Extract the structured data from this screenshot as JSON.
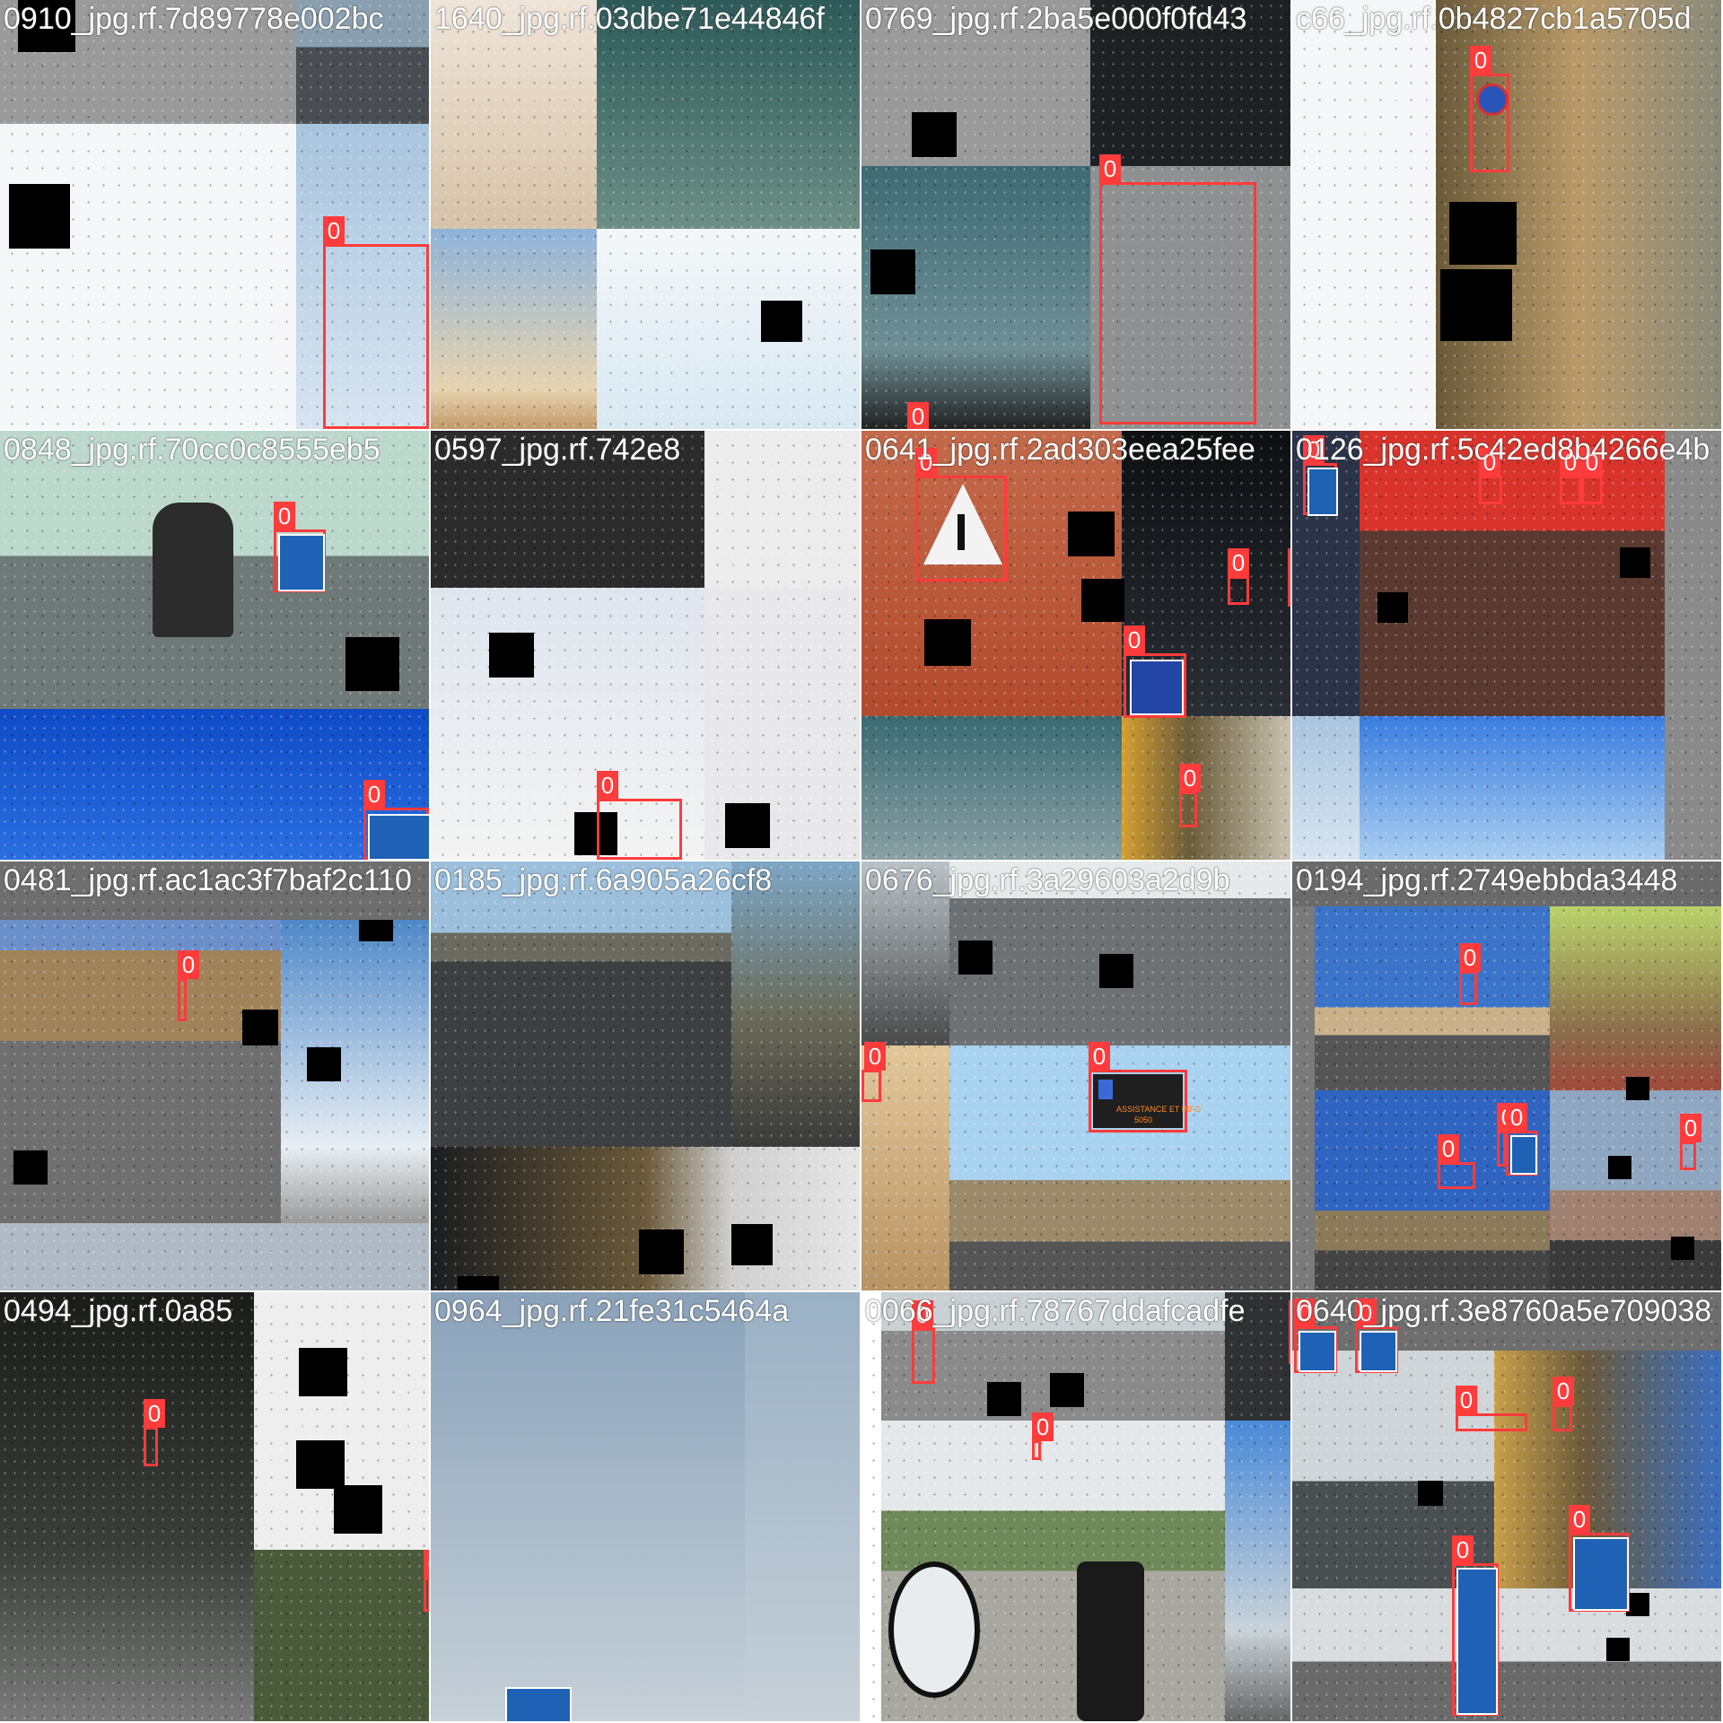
{
  "title_strip_color": "#ff3b3b",
  "tiles": [
    {
      "id": "t1",
      "title": "0910_jpg.rf.7d89778e002bc",
      "boxes": [
        {
          "label": "0"
        }
      ]
    },
    {
      "id": "t2",
      "title": "1640_jpg.rf.03dbe71e44846f",
      "boxes": []
    },
    {
      "id": "t3",
      "title": "0769_jpg.rf.2ba5e000f0fd43",
      "boxes": [
        {
          "label": "0"
        },
        {
          "label": "0"
        }
      ]
    },
    {
      "id": "t4",
      "title": "c66_jpg.rf.0b4827cb1a5705d",
      "boxes": [
        {
          "label": "0"
        }
      ]
    },
    {
      "id": "t5",
      "title": "0848_jpg.rf.70cc0c8555eb5",
      "boxes": [
        {
          "label": "0"
        },
        {
          "label": "0"
        }
      ]
    },
    {
      "id": "t6",
      "title": "0597_jpg.rf.742e8",
      "boxes": [
        {
          "label": "0"
        }
      ]
    },
    {
      "id": "t7",
      "title": "0641_jpg.rf.2ad303eea25fee",
      "boxes": [
        {
          "label": "0"
        },
        {
          "label": "0"
        },
        {
          "label": "0"
        },
        {
          "label": "0"
        },
        {
          "label": "0"
        }
      ]
    },
    {
      "id": "t8",
      "title": "0126_jpg.rf.5c42ed8b4266e4b",
      "boxes": [
        {
          "label": "0"
        },
        {
          "label": "0"
        },
        {
          "label": "0"
        },
        {
          "label": "0"
        }
      ]
    },
    {
      "id": "t9",
      "title": "0481_jpg.rf.ac1ac3f7baf2c110",
      "boxes": [
        {
          "label": "0"
        }
      ]
    },
    {
      "id": "t10",
      "title": "0185_jpg.rf.6a905a26cf8",
      "boxes": []
    },
    {
      "id": "t11",
      "title": "0676_jpg.rf.3a29603a2d9b",
      "boxes": [
        {
          "label": "0"
        },
        {
          "label": "0"
        }
      ]
    },
    {
      "id": "t12",
      "title": "0194_jpg.rf.2749ebbda3448",
      "boxes": [
        {
          "label": "0"
        },
        {
          "label": "0"
        },
        {
          "label": "0"
        },
        {
          "label": "0"
        },
        {
          "label": "0"
        }
      ]
    },
    {
      "id": "t13",
      "title": "0494_jpg.rf.0a85",
      "boxes": [
        {
          "label": "0"
        },
        {
          "label": "0"
        }
      ]
    },
    {
      "id": "t14",
      "title": "0964_jpg.rf.21fe31c5464a",
      "boxes": []
    },
    {
      "id": "t15",
      "title": "0066_jpg.rf.78767ddafcadfe",
      "boxes": [
        {
          "label": "0"
        },
        {
          "label": "0"
        },
        {
          "label": "0"
        }
      ]
    },
    {
      "id": "t16",
      "title": "0640_jpg.rf.3e8760a5e709038",
      "boxes": [
        {
          "label": "0"
        },
        {
          "label": "0"
        },
        {
          "label": "0"
        },
        {
          "label": "0"
        },
        {
          "label": "0"
        },
        {
          "label": "0"
        }
      ]
    }
  ],
  "sign_texts": {
    "t7_panel": "ASSISTANCE ET INFO",
    "t7_number": "5050"
  }
}
